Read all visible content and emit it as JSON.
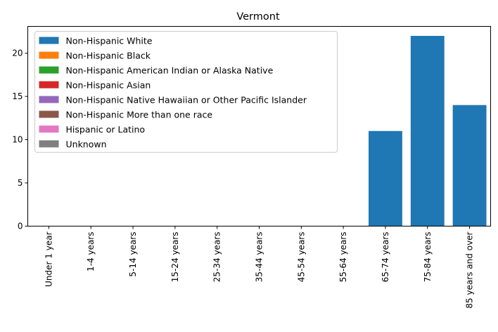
{
  "chart_data": {
    "type": "bar",
    "stacked": true,
    "title": "Vermont",
    "xlabel": "",
    "ylabel": "",
    "categories": [
      "Under 1 year",
      "1-4 years",
      "5-14 years",
      "15-24 years",
      "25-34 years",
      "35-44 years",
      "45-54 years",
      "55-64 years",
      "65-74 years",
      "75-84 years",
      "85 years and over"
    ],
    "ylim": [
      0,
      23.1
    ],
    "yticks": [
      0,
      5,
      10,
      15,
      20
    ],
    "grid": false,
    "legend_position": "top-left",
    "series": [
      {
        "name": "Non-Hispanic White",
        "color": "#1f77b4",
        "values": [
          0,
          0,
          0,
          0,
          0,
          0,
          0,
          0,
          11,
          22,
          14
        ]
      },
      {
        "name": "Non-Hispanic Black",
        "color": "#ff7f0e",
        "values": [
          0,
          0,
          0,
          0,
          0,
          0,
          0,
          0,
          0,
          0,
          0
        ]
      },
      {
        "name": "Non-Hispanic American Indian or Alaska Native",
        "color": "#2ca02c",
        "values": [
          0,
          0,
          0,
          0,
          0,
          0,
          0,
          0,
          0,
          0,
          0
        ]
      },
      {
        "name": "Non-Hispanic Asian",
        "color": "#d62728",
        "values": [
          0,
          0,
          0,
          0,
          0,
          0,
          0,
          0,
          0,
          0,
          0
        ]
      },
      {
        "name": "Non-Hispanic Native Hawaiian or Other Pacific Islander",
        "color": "#9467bd",
        "values": [
          0,
          0,
          0,
          0,
          0,
          0,
          0,
          0,
          0,
          0,
          0
        ]
      },
      {
        "name": "Non-Hispanic More than one race",
        "color": "#8c564b",
        "values": [
          0,
          0,
          0,
          0,
          0,
          0,
          0,
          0,
          0,
          0,
          0
        ]
      },
      {
        "name": "Hispanic or Latino",
        "color": "#e377c2",
        "values": [
          0,
          0,
          0,
          0,
          0,
          0,
          0,
          0,
          0,
          0,
          0
        ]
      },
      {
        "name": "Unknown",
        "color": "#7f7f7f",
        "values": [
          0,
          0,
          0,
          0,
          0,
          0,
          0,
          0,
          0,
          0,
          0
        ]
      }
    ]
  }
}
